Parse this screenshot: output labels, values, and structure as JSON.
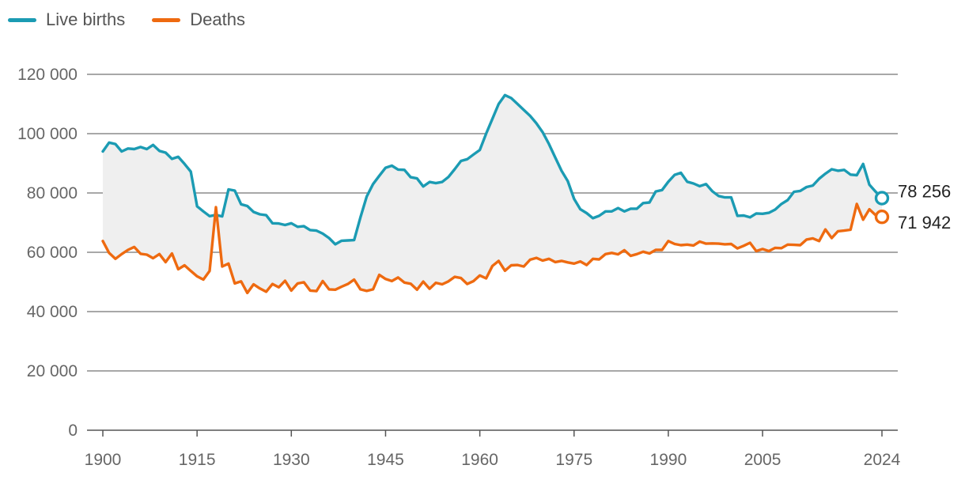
{
  "chart_data": {
    "type": "line",
    "legend_position": "top-left",
    "grid": true,
    "xlim": [
      1900,
      2024
    ],
    "ylim": [
      0,
      120000
    ],
    "x_ticks": [
      {
        "value": 1900,
        "label": "1900"
      },
      {
        "value": 1915,
        "label": "1915"
      },
      {
        "value": 1930,
        "label": "1930"
      },
      {
        "value": 1945,
        "label": "1945"
      },
      {
        "value": 1960,
        "label": "1960"
      },
      {
        "value": 1975,
        "label": "1975"
      },
      {
        "value": 1990,
        "label": "1990"
      },
      {
        "value": 2005,
        "label": "2005"
      },
      {
        "value": 2024,
        "label": "2024"
      }
    ],
    "y_ticks": [
      {
        "value": 0,
        "label": "0"
      },
      {
        "value": 20000,
        "label": "20 000"
      },
      {
        "value": 40000,
        "label": "40 000"
      },
      {
        "value": 60000,
        "label": "60 000"
      },
      {
        "value": 80000,
        "label": "80 000"
      },
      {
        "value": 100000,
        "label": "100 000"
      },
      {
        "value": 120000,
        "label": "120 000"
      }
    ],
    "x": [
      1900,
      1901,
      1902,
      1903,
      1904,
      1905,
      1906,
      1907,
      1908,
      1909,
      1910,
      1911,
      1912,
      1913,
      1914,
      1915,
      1916,
      1917,
      1918,
      1919,
      1920,
      1921,
      1922,
      1923,
      1924,
      1925,
      1926,
      1927,
      1928,
      1929,
      1930,
      1931,
      1932,
      1933,
      1934,
      1935,
      1936,
      1937,
      1938,
      1939,
      1940,
      1941,
      1942,
      1943,
      1944,
      1945,
      1946,
      1947,
      1948,
      1949,
      1950,
      1951,
      1952,
      1953,
      1954,
      1955,
      1956,
      1957,
      1958,
      1959,
      1960,
      1961,
      1962,
      1963,
      1964,
      1965,
      1966,
      1967,
      1968,
      1969,
      1970,
      1971,
      1972,
      1973,
      1974,
      1975,
      1976,
      1977,
      1978,
      1979,
      1980,
      1981,
      1982,
      1983,
      1984,
      1985,
      1986,
      1987,
      1988,
      1989,
      1990,
      1991,
      1992,
      1993,
      1994,
      1995,
      1996,
      1997,
      1998,
      1999,
      2000,
      2001,
      2002,
      2003,
      2004,
      2005,
      2006,
      2007,
      2008,
      2009,
      2010,
      2011,
      2012,
      2013,
      2014,
      2015,
      2016,
      2017,
      2018,
      2019,
      2020,
      2021,
      2022,
      2023,
      2024
    ],
    "series": [
      {
        "name": "Live births",
        "color": "#1b9bb3",
        "end_label": "78 256",
        "values": [
          94000,
          97000,
          96500,
          94000,
          95000,
          94800,
          95500,
          94800,
          96200,
          94200,
          93600,
          91500,
          92200,
          89800,
          87200,
          75500,
          73800,
          72200,
          72600,
          72100,
          81200,
          80800,
          76200,
          75600,
          73600,
          72800,
          72500,
          69800,
          69700,
          69200,
          69800,
          68600,
          68800,
          67500,
          67300,
          66300,
          64800,
          62700,
          63900,
          64000,
          64100,
          71800,
          78800,
          83000,
          85800,
          88500,
          89200,
          87900,
          87800,
          85300,
          84900,
          82200,
          83700,
          83300,
          83700,
          85400,
          88000,
          90800,
          91400,
          93000,
          94500,
          100000,
          105000,
          110000,
          113000,
          112000,
          110000,
          108000,
          106000,
          103500,
          100500,
          96500,
          92000,
          87500,
          84000,
          78000,
          74500,
          73200,
          71500,
          72300,
          73800,
          73800,
          74900,
          73800,
          74700,
          74700,
          76600,
          76800,
          80500,
          81000,
          83800,
          86100,
          86800,
          83800,
          83200,
          82300,
          83000,
          80600,
          79000,
          78500,
          78500,
          72300,
          72400,
          71800,
          73100,
          73000,
          73300,
          74400,
          76300,
          77600,
          80400,
          80700,
          82000,
          82500,
          84800,
          86500,
          88000,
          87500,
          87800,
          86200,
          86000,
          89800,
          82800,
          80400,
          78256
        ]
      },
      {
        "name": "Deaths",
        "color": "#ee6a10",
        "end_label": "71 942",
        "values": [
          63800,
          59800,
          57800,
          59400,
          60800,
          61800,
          59500,
          59200,
          58000,
          59400,
          56700,
          59600,
          54300,
          55600,
          53700,
          51900,
          50800,
          53700,
          75200,
          55200,
          56200,
          49500,
          50200,
          46300,
          49200,
          47800,
          46700,
          49300,
          48200,
          50400,
          47100,
          49500,
          49900,
          47100,
          46900,
          50300,
          47500,
          47400,
          48400,
          49300,
          50800,
          47500,
          47000,
          47500,
          52400,
          51000,
          50300,
          51500,
          49800,
          49400,
          47400,
          50100,
          47700,
          49700,
          49200,
          50200,
          51700,
          51300,
          49300,
          50300,
          52200,
          51200,
          55400,
          57100,
          53800,
          55600,
          55700,
          55200,
          57500,
          58100,
          57200,
          57800,
          56700,
          57100,
          56600,
          56200,
          56900,
          55700,
          57800,
          57600,
          59400,
          59800,
          59300,
          60700,
          58800,
          59400,
          60200,
          59600,
          60800,
          60800,
          63800,
          62800,
          62400,
          62600,
          62300,
          63600,
          62900,
          63000,
          62900,
          62700,
          62800,
          61300,
          62200,
          63200,
          60400,
          61100,
          60400,
          61500,
          61400,
          62600,
          62500,
          62400,
          64300,
          64700,
          63800,
          67700,
          64800,
          67100,
          67300,
          67600,
          76300,
          71000,
          74500,
          72500,
          71942
        ]
      }
    ]
  }
}
